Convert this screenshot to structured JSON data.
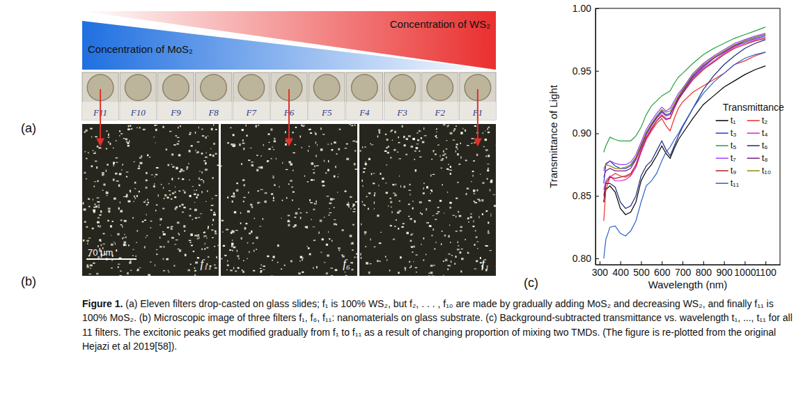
{
  "panel_a": {
    "label": "(a)",
    "gradient_labels": [
      "Concentration of MoS₂",
      "Concentration of WS₂"
    ],
    "slides": [
      "F11",
      "F10",
      "F9",
      "F8",
      "F7",
      "F6",
      "F5",
      "F4",
      "F3",
      "F2",
      "F1"
    ]
  },
  "panel_b": {
    "label": "(b)",
    "images": [
      "f₁₁",
      "f₆",
      "f₁"
    ],
    "scale_bar": "70 μm"
  },
  "panel_c": {
    "label": "(c)"
  },
  "chart_data": {
    "type": "line",
    "x_label": "Wavelength (nm)",
    "y_label": "Transmittance of Light",
    "legend_title": "Transmittance",
    "legend": "right",
    "grid": false,
    "xlim": [
      280,
      1170
    ],
    "xticks": [
      300,
      400,
      500,
      600,
      700,
      800,
      900,
      1000,
      1100
    ],
    "ylim": [
      0.795,
      1.0
    ],
    "yticks": [
      {
        "value": 0.8,
        "label": "0.80"
      },
      {
        "value": 0.85,
        "label": "0.85"
      },
      {
        "value": 0.9,
        "label": "0.90"
      },
      {
        "value": 0.95,
        "label": "0.95"
      },
      {
        "value": 1.0,
        "label": "1.00"
      }
    ],
    "x": [
      320,
      330,
      350,
      375,
      400,
      425,
      450,
      475,
      500,
      525,
      550,
      575,
      600,
      620,
      640,
      660,
      680,
      700,
      750,
      800,
      850,
      900,
      950,
      1000,
      1050,
      1100
    ],
    "series": [
      {
        "name": "t₁",
        "color": "#000000",
        "values": [
          0.845,
          0.855,
          0.858,
          0.853,
          0.84,
          0.835,
          0.837,
          0.845,
          0.862,
          0.87,
          0.875,
          0.882,
          0.89,
          0.884,
          0.88,
          0.888,
          0.895,
          0.9,
          0.912,
          0.923,
          0.93,
          0.937,
          0.942,
          0.947,
          0.951,
          0.954
        ]
      },
      {
        "name": "t₂",
        "color": "#e8302a",
        "values": [
          0.83,
          0.855,
          0.865,
          0.868,
          0.866,
          0.865,
          0.867,
          0.873,
          0.885,
          0.895,
          0.902,
          0.908,
          0.912,
          0.906,
          0.902,
          0.912,
          0.92,
          0.925,
          0.933,
          0.938,
          0.943,
          0.948,
          0.955,
          0.958,
          0.962,
          0.965
        ]
      },
      {
        "name": "t₃",
        "color": "#1f3fd8",
        "values": [
          0.86,
          0.875,
          0.878,
          0.874,
          0.872,
          0.872,
          0.874,
          0.88,
          0.89,
          0.9,
          0.907,
          0.913,
          0.918,
          0.915,
          0.916,
          0.922,
          0.928,
          0.933,
          0.945,
          0.953,
          0.96,
          0.965,
          0.97,
          0.973,
          0.976,
          0.978
        ]
      },
      {
        "name": "t₄",
        "color": "#e020d0",
        "values": [
          0.855,
          0.862,
          0.866,
          0.862,
          0.862,
          0.863,
          0.866,
          0.873,
          0.885,
          0.896,
          0.903,
          0.91,
          0.915,
          0.912,
          0.912,
          0.92,
          0.927,
          0.932,
          0.944,
          0.952,
          0.958,
          0.964,
          0.969,
          0.972,
          0.975,
          0.977
        ]
      },
      {
        "name": "t₅",
        "color": "#22a33a",
        "values": [
          0.885,
          0.89,
          0.897,
          0.895,
          0.894,
          0.894,
          0.894,
          0.898,
          0.905,
          0.915,
          0.922,
          0.926,
          0.93,
          0.932,
          0.934,
          0.94,
          0.945,
          0.948,
          0.956,
          0.963,
          0.968,
          0.972,
          0.976,
          0.979,
          0.982,
          0.985
        ]
      },
      {
        "name": "t₆",
        "color": "#1c2a80",
        "values": [
          0.85,
          0.86,
          0.86,
          0.857,
          0.845,
          0.84,
          0.842,
          0.85,
          0.866,
          0.874,
          0.878,
          0.886,
          0.894,
          0.887,
          0.882,
          0.89,
          0.898,
          0.905,
          0.92,
          0.935,
          0.946,
          0.955,
          0.962,
          0.968,
          0.972,
          0.975
        ]
      },
      {
        "name": "t₇",
        "color": "#a040ff",
        "values": [
          0.87,
          0.876,
          0.878,
          0.876,
          0.875,
          0.875,
          0.877,
          0.883,
          0.893,
          0.903,
          0.91,
          0.916,
          0.921,
          0.918,
          0.92,
          0.926,
          0.932,
          0.936,
          0.948,
          0.956,
          0.962,
          0.967,
          0.972,
          0.975,
          0.978,
          0.98
        ]
      },
      {
        "name": "t₈",
        "color": "#7a1a8a",
        "values": [
          0.865,
          0.87,
          0.872,
          0.87,
          0.87,
          0.87,
          0.872,
          0.879,
          0.889,
          0.899,
          0.906,
          0.912,
          0.917,
          0.914,
          0.915,
          0.922,
          0.929,
          0.934,
          0.946,
          0.954,
          0.96,
          0.965,
          0.97,
          0.974,
          0.977,
          0.979
        ]
      },
      {
        "name": "t₉",
        "color": "#b02020",
        "values": [
          0.845,
          0.86,
          0.865,
          0.864,
          0.865,
          0.866,
          0.868,
          0.875,
          0.887,
          0.897,
          0.904,
          0.91,
          0.914,
          0.911,
          0.912,
          0.92,
          0.927,
          0.932,
          0.943,
          0.951,
          0.957,
          0.963,
          0.968,
          0.971,
          0.974,
          0.976
        ]
      },
      {
        "name": "t₁₀",
        "color": "#8a8a10",
        "values": [
          0.872,
          0.875,
          0.874,
          0.872,
          0.872,
          0.873,
          0.875,
          0.881,
          0.891,
          0.901,
          0.908,
          0.914,
          0.919,
          0.917,
          0.918,
          0.924,
          0.93,
          0.935,
          0.947,
          0.955,
          0.961,
          0.966,
          0.971,
          0.974,
          0.977,
          0.979
        ]
      },
      {
        "name": "t₁₁",
        "color": "#2a62c8",
        "values": [
          0.8,
          0.815,
          0.825,
          0.826,
          0.82,
          0.818,
          0.822,
          0.83,
          0.845,
          0.858,
          0.862,
          0.868,
          0.878,
          0.885,
          0.889,
          0.895,
          0.9,
          0.906,
          0.92,
          0.932,
          0.941,
          0.948,
          0.955,
          0.96,
          0.963,
          0.965
        ]
      }
    ]
  },
  "caption": {
    "label": "Figure 1.",
    "text": "(a) Eleven filters drop-casted on glass slides; f₁ is 100% WS₂, but f₂, . . . , f₁₀ are made by gradually adding MoS₂ and decreasing WS₂, and finally f₁₁ is 100% MoS₂. (b) Microscopic image of three filters f₁, f₆, f₁₁: nanomaterials on glass substrate. (c) Background-subtracted transmittance vs. wavelength t₁, ..., t₁₁ for all 11 filters. The excitonic peaks get modified gradually from f₁ to f₁₁ as a result of changing proportion of mixing two TMDs. (The figure is re-plotted from the original Hejazi et al 2019[58])."
  }
}
